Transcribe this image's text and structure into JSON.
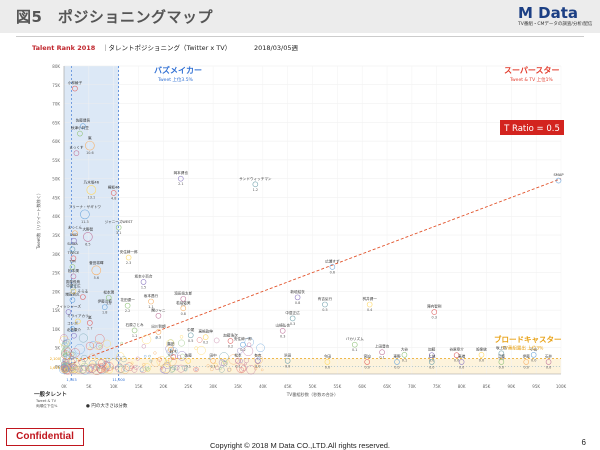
{
  "slide": {
    "title": "図5　ポジショニングマップ",
    "confidential": "Confidential",
    "copyright": "Copyright © 2018 M Data CO.,LTD.All rights reserved.",
    "page_number": "6"
  },
  "logo": {
    "main": "M Data",
    "sub": "TV番組・CMデータの調査/分析/配信"
  },
  "colors": {
    "buzz": "#2f6fd3",
    "super": "#e23b2b",
    "broad": "#e8a012",
    "trend": "#e2532b",
    "buzz_fill": "#dce8f6",
    "broad_fill": "#fdf3dc"
  },
  "chart_data": {
    "type": "scatter",
    "header": {
      "brand": "Talent Rank",
      "year": "2018",
      "subtitle": "タレントポジショニング（Twitter x TV）",
      "date": "2018/03/05週"
    },
    "xlabel": "TV番組秒数（秒数の合計）",
    "ylabel": "Tweet数（リツイート数除く）",
    "xlim": [
      0,
      100000
    ],
    "ylim": [
      -2000,
      80000
    ],
    "x_tick_labels": [
      "0K",
      "5K",
      "10K",
      "15K",
      "20K",
      "25K",
      "30K",
      "35K",
      "40K",
      "45K",
      "50K",
      "55K",
      "60K",
      "65K",
      "70K",
      "75K",
      "80K",
      "85K",
      "90K",
      "95K",
      "100K"
    ],
    "y_tick_labels": [
      "0K",
      "5K",
      "10K",
      "15K",
      "20K",
      "25K",
      "30K",
      "35K",
      "40K",
      "45K",
      "50K",
      "55K",
      "60K",
      "65K",
      "70K",
      "75K",
      "80K"
    ],
    "regions": {
      "buzz": {
        "label": "バズメイカー",
        "sub": "Tweet 上位3.5%",
        "x_max": 11000,
        "x_min_label": "1,503",
        "x_max_label": "11,000"
      },
      "super": {
        "label": "スーパースター",
        "sub": "Tweet & TV 上位1%"
      },
      "broad": {
        "label": "ブロードキャスター",
        "sub": "TV番組露出 上位3%",
        "y_max": 2100,
        "y_label_top": "2,100",
        "y_label_bottom": "1,676"
      }
    },
    "trend_label": "T Ratio = 0.5",
    "trend_line": {
      "x": [
        0,
        100000
      ],
      "y": [
        0,
        50000
      ]
    },
    "footer_left": "一般タレント",
    "footer_left_sub": "Tweet & TV\n両順位下位%",
    "footer_note": "● 円の大きさは分数",
    "points": [
      {
        "name": "小林綾子",
        "x": 2200,
        "y": 74000,
        "v": ""
      },
      {
        "name": "佐藤健吾",
        "x": 3800,
        "y": 64000,
        "v": ""
      },
      {
        "name": "秋津小判豆",
        "x": 3200,
        "y": 62000,
        "v": ""
      },
      {
        "name": "嵐",
        "x": 5200,
        "y": 58800,
        "v": "10.6"
      },
      {
        "name": "まっくす",
        "x": 2500,
        "y": 56800,
        "v": ""
      },
      {
        "name": "岡本健也",
        "x": 23500,
        "y": 50000,
        "v": "2.1"
      },
      {
        "name": "サンドウィッチマン",
        "x": 38500,
        "y": 48500,
        "v": "1.2"
      },
      {
        "name": "乃木坂46",
        "x": 5500,
        "y": 47000,
        "v": "13.1"
      },
      {
        "name": "欅坂46",
        "x": 10000,
        "y": 46200,
        "v": "4.8"
      },
      {
        "name": "アリーナ・ザギトワ",
        "x": 4200,
        "y": 40500,
        "v": "11.3"
      },
      {
        "name": "ジャニーズWEST",
        "x": 11000,
        "y": 37000,
        "v": "3.1"
      },
      {
        "name": "まっくん",
        "x": 2200,
        "y": 35500,
        "v": ""
      },
      {
        "name": "大野智",
        "x": 4800,
        "y": 34500,
        "v": "6.5"
      },
      {
        "name": "DXD",
        "x": 2000,
        "y": 33500,
        "v": ""
      },
      {
        "name": "SLIDA",
        "x": 1700,
        "y": 31200,
        "v": ""
      },
      {
        "name": "安住紳一郎",
        "x": 13000,
        "y": 29000,
        "v": "2.3"
      },
      {
        "name": "TWICE",
        "x": 1900,
        "y": 28800,
        "v": ""
      },
      {
        "name": "広瀬すず",
        "x": 54000,
        "y": 26500,
        "v": "0.6"
      },
      {
        "name": "TIM",
        "x": 1700,
        "y": 26500,
        "v": ""
      },
      {
        "name": "菅田将暉",
        "x": 6500,
        "y": 25600,
        "v": "5.6"
      },
      {
        "name": "松本潤",
        "x": 1900,
        "y": 24000,
        "v": ""
      },
      {
        "name": "坂本小百合",
        "x": 16000,
        "y": 22500,
        "v": "1.5"
      },
      {
        "name": "斎藤飛鳥",
        "x": 1800,
        "y": 21000,
        "v": ""
      },
      {
        "name": "中居正広",
        "x": 1900,
        "y": 20000,
        "v": ""
      },
      {
        "name": "そらる",
        "x": 3800,
        "y": 18500,
        "v": ""
      },
      {
        "name": "増田貴久",
        "x": 1700,
        "y": 17700,
        "v": ""
      },
      {
        "name": "松本潤2",
        "x": 9000,
        "y": 18300,
        "v": "3.8"
      },
      {
        "name": "坂本昌行",
        "x": 17500,
        "y": 17300,
        "v": "1.1"
      },
      {
        "name": "濱田岳太郎",
        "x": 24000,
        "y": 18000,
        "v": "0.9"
      },
      {
        "name": "新垣結衣",
        "x": 47000,
        "y": 18400,
        "v": "0.8"
      },
      {
        "name": "有吉弘行",
        "x": 52500,
        "y": 16500,
        "v": "0.5"
      },
      {
        "name": "桝井健一",
        "x": 61500,
        "y": 16500,
        "v": "0.4"
      },
      {
        "name": "陣内智則",
        "x": 74500,
        "y": 14500,
        "v": "0.3"
      },
      {
        "name": "伊藤沙莉",
        "x": 8200,
        "y": 15800,
        "v": "1.8"
      },
      {
        "name": "花田優一",
        "x": 12800,
        "y": 16200,
        "v": "2.2"
      },
      {
        "name": "若月佑美",
        "x": 24000,
        "y": 15500,
        "v": "0.8"
      },
      {
        "name": "関ジャニ",
        "x": 19000,
        "y": 13500,
        "v": ""
      },
      {
        "name": "フィッシャーズ",
        "x": 900,
        "y": 14500,
        "v": ""
      },
      {
        "name": "中居正広2",
        "x": 46000,
        "y": 12800,
        "v": "0.3"
      },
      {
        "name": "ミライアカリ",
        "x": 2800,
        "y": 12000,
        "v": ""
      },
      {
        "name": "嵐2",
        "x": 5200,
        "y": 11600,
        "v": "2.7"
      },
      {
        "name": "コンボ",
        "x": 1700,
        "y": 10000,
        "v": ""
      },
      {
        "name": "石原さとみ",
        "x": 14200,
        "y": 9600,
        "v": "1.1"
      },
      {
        "name": "出川哲朗",
        "x": 19000,
        "y": 9200,
        "v": "0.3"
      },
      {
        "name": "山崎弘也",
        "x": 44000,
        "y": 9500,
        "v": "0.3"
      },
      {
        "name": "北島康介",
        "x": 2000,
        "y": 8200,
        "v": ""
      },
      {
        "name": "中尾",
        "x": 25500,
        "y": 8300,
        "v": "0.5"
      },
      {
        "name": "高嶋政伸",
        "x": 28500,
        "y": 7800,
        "v": "0.2"
      },
      {
        "name": "加藤浩次",
        "x": 33500,
        "y": 6800,
        "v": "0.2"
      },
      {
        "name": "安住紳一郎2",
        "x": 36000,
        "y": 5800,
        "v": "0.2"
      },
      {
        "name": "バカリズム",
        "x": 58500,
        "y": 5800,
        "v": "0.1"
      },
      {
        "name": "藤田",
        "x": 21500,
        "y": 4500,
        "v": "0.2"
      },
      {
        "name": "上田晋也",
        "x": 64000,
        "y": 3800,
        "v": "0.1"
      },
      {
        "name": "加藤",
        "x": 74000,
        "y": 3000,
        "v": "0.0"
      },
      {
        "name": "坂上忍",
        "x": 88000,
        "y": 3500,
        "v": "0.0"
      },
      {
        "name": "設楽統",
        "x": 84000,
        "y": 3100,
        "v": "0.0"
      },
      {
        "name": "谷原章介",
        "x": 79000,
        "y": 3000,
        "v": "0.0"
      },
      {
        "name": "小山",
        "x": 94500,
        "y": 3100,
        "v": "0.0"
      },
      {
        "name": "大谷",
        "x": 68500,
        "y": 3100,
        "v": "0.1"
      },
      {
        "name": "田中",
        "x": 30000,
        "y": 1500,
        "v": "0.1"
      },
      {
        "name": "松本",
        "x": 35000,
        "y": 1500,
        "v": "0.1"
      },
      {
        "name": "有吉2",
        "x": 39000,
        "y": 1500,
        "v": "0.0"
      },
      {
        "name": "浜田",
        "x": 45000,
        "y": 1500,
        "v": "0.0"
      },
      {
        "name": "今田",
        "x": 53000,
        "y": 1200,
        "v": "0.0"
      },
      {
        "name": "宮迫",
        "x": 61000,
        "y": 1200,
        "v": "0.0"
      },
      {
        "name": "東野",
        "x": 67000,
        "y": 1200,
        "v": "0.0"
      },
      {
        "name": "江藤",
        "x": 88000,
        "y": 1200,
        "v": "0.0"
      },
      {
        "name": "伊藤",
        "x": 93000,
        "y": 1200,
        "v": "0.0"
      },
      {
        "name": "石井",
        "x": 97500,
        "y": 1200,
        "v": "0.0"
      },
      {
        "name": "高橋",
        "x": 80000,
        "y": 1200,
        "v": "0.0"
      },
      {
        "name": "上地",
        "x": 74000,
        "y": 1200,
        "v": "0.0"
      },
      {
        "name": "佐藤",
        "x": 25000,
        "y": 1500,
        "v": "0.1"
      },
      {
        "name": "鈴木",
        "x": 22000,
        "y": 2500,
        "v": ""
      },
      {
        "name": "SMAP",
        "x": 99500,
        "y": 49500,
        "v": ""
      }
    ]
  }
}
